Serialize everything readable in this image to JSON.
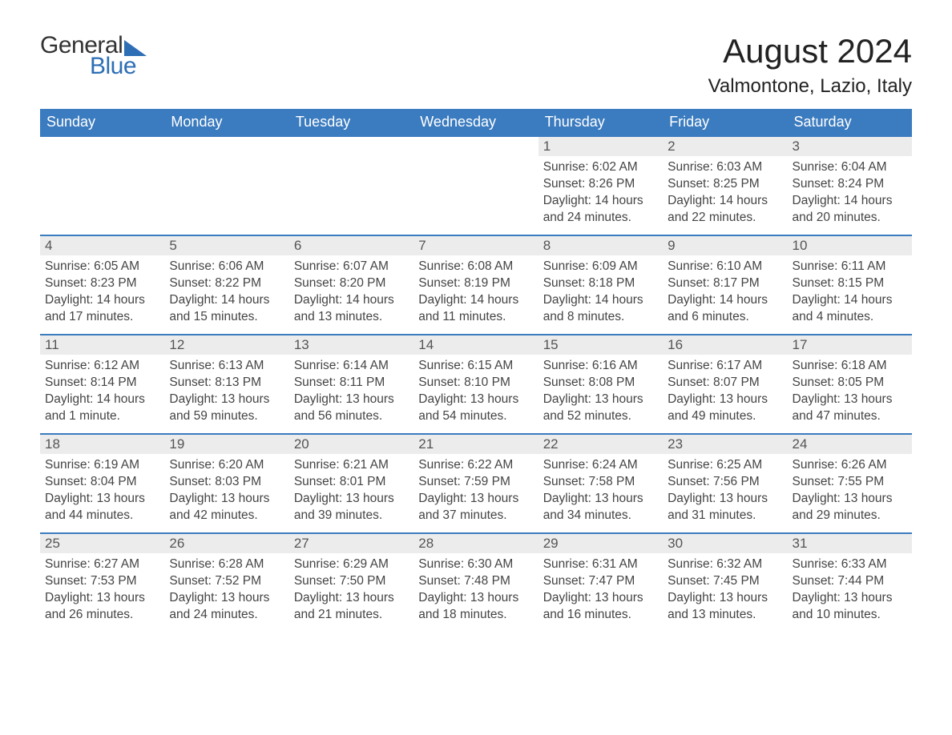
{
  "logo": {
    "general": "General",
    "blue": "Blue"
  },
  "header": {
    "title": "August 2024",
    "location": "Valmontone, Lazio, Italy"
  },
  "colors": {
    "header_bg": "#3b7bbf",
    "header_text": "#ffffff",
    "daynum_bg": "#ececec",
    "row_border": "#3b7bbf",
    "logo_blue": "#2d6eb5"
  },
  "weekdays": [
    "Sunday",
    "Monday",
    "Tuesday",
    "Wednesday",
    "Thursday",
    "Friday",
    "Saturday"
  ],
  "weeks": [
    [
      {
        "empty": true
      },
      {
        "empty": true
      },
      {
        "empty": true
      },
      {
        "empty": true
      },
      {
        "day": "1",
        "sunrise": "Sunrise: 6:02 AM",
        "sunset": "Sunset: 8:26 PM",
        "daylight": "Daylight: 14 hours and 24 minutes."
      },
      {
        "day": "2",
        "sunrise": "Sunrise: 6:03 AM",
        "sunset": "Sunset: 8:25 PM",
        "daylight": "Daylight: 14 hours and 22 minutes."
      },
      {
        "day": "3",
        "sunrise": "Sunrise: 6:04 AM",
        "sunset": "Sunset: 8:24 PM",
        "daylight": "Daylight: 14 hours and 20 minutes."
      }
    ],
    [
      {
        "day": "4",
        "sunrise": "Sunrise: 6:05 AM",
        "sunset": "Sunset: 8:23 PM",
        "daylight": "Daylight: 14 hours and 17 minutes."
      },
      {
        "day": "5",
        "sunrise": "Sunrise: 6:06 AM",
        "sunset": "Sunset: 8:22 PM",
        "daylight": "Daylight: 14 hours and 15 minutes."
      },
      {
        "day": "6",
        "sunrise": "Sunrise: 6:07 AM",
        "sunset": "Sunset: 8:20 PM",
        "daylight": "Daylight: 14 hours and 13 minutes."
      },
      {
        "day": "7",
        "sunrise": "Sunrise: 6:08 AM",
        "sunset": "Sunset: 8:19 PM",
        "daylight": "Daylight: 14 hours and 11 minutes."
      },
      {
        "day": "8",
        "sunrise": "Sunrise: 6:09 AM",
        "sunset": "Sunset: 8:18 PM",
        "daylight": "Daylight: 14 hours and 8 minutes."
      },
      {
        "day": "9",
        "sunrise": "Sunrise: 6:10 AM",
        "sunset": "Sunset: 8:17 PM",
        "daylight": "Daylight: 14 hours and 6 minutes."
      },
      {
        "day": "10",
        "sunrise": "Sunrise: 6:11 AM",
        "sunset": "Sunset: 8:15 PM",
        "daylight": "Daylight: 14 hours and 4 minutes."
      }
    ],
    [
      {
        "day": "11",
        "sunrise": "Sunrise: 6:12 AM",
        "sunset": "Sunset: 8:14 PM",
        "daylight": "Daylight: 14 hours and 1 minute."
      },
      {
        "day": "12",
        "sunrise": "Sunrise: 6:13 AM",
        "sunset": "Sunset: 8:13 PM",
        "daylight": "Daylight: 13 hours and 59 minutes."
      },
      {
        "day": "13",
        "sunrise": "Sunrise: 6:14 AM",
        "sunset": "Sunset: 8:11 PM",
        "daylight": "Daylight: 13 hours and 56 minutes."
      },
      {
        "day": "14",
        "sunrise": "Sunrise: 6:15 AM",
        "sunset": "Sunset: 8:10 PM",
        "daylight": "Daylight: 13 hours and 54 minutes."
      },
      {
        "day": "15",
        "sunrise": "Sunrise: 6:16 AM",
        "sunset": "Sunset: 8:08 PM",
        "daylight": "Daylight: 13 hours and 52 minutes."
      },
      {
        "day": "16",
        "sunrise": "Sunrise: 6:17 AM",
        "sunset": "Sunset: 8:07 PM",
        "daylight": "Daylight: 13 hours and 49 minutes."
      },
      {
        "day": "17",
        "sunrise": "Sunrise: 6:18 AM",
        "sunset": "Sunset: 8:05 PM",
        "daylight": "Daylight: 13 hours and 47 minutes."
      }
    ],
    [
      {
        "day": "18",
        "sunrise": "Sunrise: 6:19 AM",
        "sunset": "Sunset: 8:04 PM",
        "daylight": "Daylight: 13 hours and 44 minutes."
      },
      {
        "day": "19",
        "sunrise": "Sunrise: 6:20 AM",
        "sunset": "Sunset: 8:03 PM",
        "daylight": "Daylight: 13 hours and 42 minutes."
      },
      {
        "day": "20",
        "sunrise": "Sunrise: 6:21 AM",
        "sunset": "Sunset: 8:01 PM",
        "daylight": "Daylight: 13 hours and 39 minutes."
      },
      {
        "day": "21",
        "sunrise": "Sunrise: 6:22 AM",
        "sunset": "Sunset: 7:59 PM",
        "daylight": "Daylight: 13 hours and 37 minutes."
      },
      {
        "day": "22",
        "sunrise": "Sunrise: 6:24 AM",
        "sunset": "Sunset: 7:58 PM",
        "daylight": "Daylight: 13 hours and 34 minutes."
      },
      {
        "day": "23",
        "sunrise": "Sunrise: 6:25 AM",
        "sunset": "Sunset: 7:56 PM",
        "daylight": "Daylight: 13 hours and 31 minutes."
      },
      {
        "day": "24",
        "sunrise": "Sunrise: 6:26 AM",
        "sunset": "Sunset: 7:55 PM",
        "daylight": "Daylight: 13 hours and 29 minutes."
      }
    ],
    [
      {
        "day": "25",
        "sunrise": "Sunrise: 6:27 AM",
        "sunset": "Sunset: 7:53 PM",
        "daylight": "Daylight: 13 hours and 26 minutes."
      },
      {
        "day": "26",
        "sunrise": "Sunrise: 6:28 AM",
        "sunset": "Sunset: 7:52 PM",
        "daylight": "Daylight: 13 hours and 24 minutes."
      },
      {
        "day": "27",
        "sunrise": "Sunrise: 6:29 AM",
        "sunset": "Sunset: 7:50 PM",
        "daylight": "Daylight: 13 hours and 21 minutes."
      },
      {
        "day": "28",
        "sunrise": "Sunrise: 6:30 AM",
        "sunset": "Sunset: 7:48 PM",
        "daylight": "Daylight: 13 hours and 18 minutes."
      },
      {
        "day": "29",
        "sunrise": "Sunrise: 6:31 AM",
        "sunset": "Sunset: 7:47 PM",
        "daylight": "Daylight: 13 hours and 16 minutes."
      },
      {
        "day": "30",
        "sunrise": "Sunrise: 6:32 AM",
        "sunset": "Sunset: 7:45 PM",
        "daylight": "Daylight: 13 hours and 13 minutes."
      },
      {
        "day": "31",
        "sunrise": "Sunrise: 6:33 AM",
        "sunset": "Sunset: 7:44 PM",
        "daylight": "Daylight: 13 hours and 10 minutes."
      }
    ]
  ]
}
